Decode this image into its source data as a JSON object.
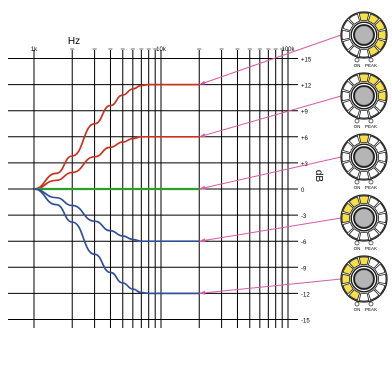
{
  "axes": {
    "x_title": "Hz",
    "y_title": "dB",
    "x_tick_labels": [
      {
        "value": 1000,
        "label": "1k"
      },
      {
        "value": 10000,
        "label": "10k"
      },
      {
        "value": 100000,
        "label": "100k"
      }
    ],
    "y_tick_labels": [
      "+15",
      "+12",
      "+9",
      "+6",
      "+3",
      "0",
      "-3",
      "-6",
      "-9",
      "-12",
      "-15"
    ],
    "y_range": [
      -15,
      15
    ],
    "x_range_decades": [
      1000,
      100000
    ]
  },
  "colors": {
    "boost_curve": "#c8321e",
    "flat_curve": "#2aa02a",
    "cut_curve": "#2e4f9a",
    "grid": "#000000",
    "connector": "#d85aa8",
    "led_on": "#f5e04a",
    "led_off": "#ffffff",
    "knob_fill": "#b5b5b5"
  },
  "chart_data": {
    "type": "line",
    "title": "",
    "xlabel": "Hz",
    "ylabel": "dB",
    "xscale": "log",
    "xlim": [
      1000,
      100000
    ],
    "ylim": [
      -15,
      15
    ],
    "grid": true,
    "series": [
      {
        "gain_db": 12,
        "color": "#c8321e",
        "x": [
          1000,
          1500,
          2000,
          3000,
          4000,
          5000,
          6000,
          7000,
          8000,
          9000,
          10000,
          12000,
          14000,
          16000,
          18000,
          20000
        ],
        "values": [
          0,
          1.8,
          3.8,
          7.5,
          9.6,
          10.8,
          11.5,
          11.9,
          12,
          12,
          12,
          12,
          12,
          12,
          12,
          12
        ]
      },
      {
        "gain_db": 6,
        "color": "#c8321e",
        "x": [
          1000,
          1500,
          2000,
          3000,
          4000,
          5000,
          6000,
          7000,
          8000,
          9000,
          10000,
          12000,
          14000,
          16000,
          18000,
          20000
        ],
        "values": [
          0,
          1.0,
          1.9,
          3.7,
          4.8,
          5.4,
          5.8,
          6.0,
          6.0,
          6.0,
          6.0,
          6.0,
          6.0,
          6.0,
          6.0,
          6.0
        ]
      },
      {
        "gain_db": 0,
        "color": "#2aa02a",
        "x": [
          1000,
          20000
        ],
        "values": [
          0,
          0
        ]
      },
      {
        "gain_db": -6,
        "color": "#2e4f9a",
        "x": [
          1000,
          1500,
          2000,
          3000,
          4000,
          5000,
          6000,
          7000,
          8000,
          9000,
          10000,
          12000,
          14000,
          16000,
          18000,
          20000
        ],
        "values": [
          0,
          -1.0,
          -1.9,
          -3.7,
          -4.8,
          -5.4,
          -5.8,
          -6.0,
          -6.0,
          -6.0,
          -6.0,
          -6.0,
          -6.0,
          -6.0,
          -6.0,
          -6.0
        ]
      },
      {
        "gain_db": -12,
        "color": "#2e4f9a",
        "x": [
          1000,
          1500,
          2000,
          3000,
          4000,
          5000,
          6000,
          7000,
          8000,
          9000,
          10000,
          12000,
          14000,
          16000,
          18000,
          20000
        ],
        "values": [
          0,
          -1.8,
          -3.8,
          -7.5,
          -9.6,
          -10.8,
          -11.5,
          -11.9,
          -12,
          -12,
          -12,
          -12,
          -12,
          -12,
          -12,
          -12
        ]
      }
    ]
  },
  "knobs": [
    {
      "on_label": "ON",
      "peak_label": "PEAK",
      "lit": [
        0,
        1,
        2,
        3,
        4,
        5
      ],
      "curve_gain_db": 12
    },
    {
      "on_label": "ON",
      "peak_label": "PEAK",
      "lit": [
        0,
        1,
        2,
        3
      ],
      "curve_gain_db": 6
    },
    {
      "on_label": "ON",
      "peak_label": "PEAK",
      "lit": [
        0
      ],
      "curve_gain_db": 0
    },
    {
      "on_label": "ON",
      "peak_label": "PEAK",
      "lit": [
        -3,
        -2,
        -1,
        0
      ],
      "curve_gain_db": -6
    },
    {
      "on_label": "ON",
      "peak_label": "PEAK",
      "lit": [
        -5,
        -4,
        -3,
        -2,
        -1,
        0
      ],
      "curve_gain_db": -12
    }
  ]
}
